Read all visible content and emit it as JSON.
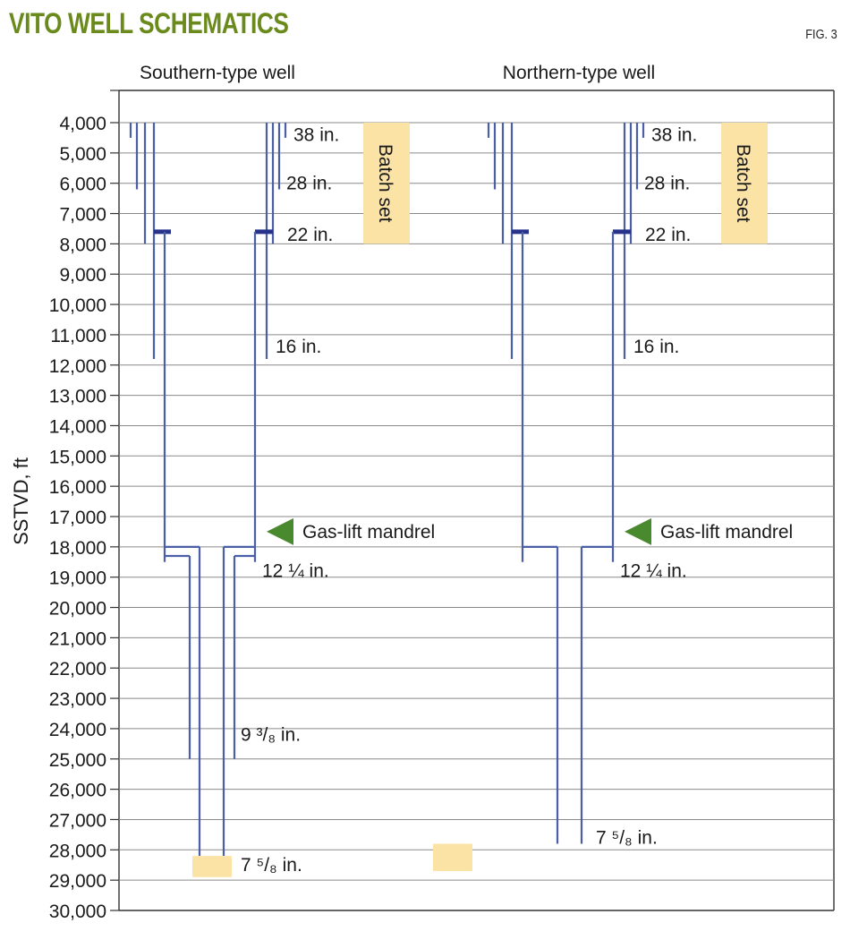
{
  "title": "VITO WELL SCHEMATICS",
  "figure_label": "FIG. 3",
  "colors": {
    "title": "#6a8a1c",
    "casing": "#4a5fa8",
    "hanger": "#27338a",
    "arrow": "#4a8a2e",
    "batch_fill": "#fbe3a6",
    "grid": "#8a8a8a"
  },
  "chart_data": {
    "type": "diagram",
    "ylabel": "SSTVD, ft",
    "ylim": [
      4000,
      30000
    ],
    "yticks": [
      {
        "value": 4000,
        "label": "4,000"
      },
      {
        "value": 5000,
        "label": "5,000"
      },
      {
        "value": 6000,
        "label": "6,000"
      },
      {
        "value": 7000,
        "label": "7,000"
      },
      {
        "value": 8000,
        "label": "8,000"
      },
      {
        "value": 9000,
        "label": "9,000"
      },
      {
        "value": 10000,
        "label": "10,000"
      },
      {
        "value": 11000,
        "label": "11,000"
      },
      {
        "value": 12000,
        "label": "12,000"
      },
      {
        "value": 13000,
        "label": "13,000"
      },
      {
        "value": 14000,
        "label": "14,000"
      },
      {
        "value": 15000,
        "label": "15,000"
      },
      {
        "value": 16000,
        "label": "16,000"
      },
      {
        "value": 17000,
        "label": "17,000"
      },
      {
        "value": 18000,
        "label": "18,000"
      },
      {
        "value": 19000,
        "label": "19,000"
      },
      {
        "value": 20000,
        "label": "20,000"
      },
      {
        "value": 21000,
        "label": "21,000"
      },
      {
        "value": 22000,
        "label": "22,000"
      },
      {
        "value": 23000,
        "label": "23,000"
      },
      {
        "value": 24000,
        "label": "24,000"
      },
      {
        "value": 25000,
        "label": "25,000"
      },
      {
        "value": 26000,
        "label": "26,000"
      },
      {
        "value": 27000,
        "label": "27,000"
      },
      {
        "value": 28000,
        "label": "28,000"
      },
      {
        "value": 29000,
        "label": "29,000"
      },
      {
        "value": 30000,
        "label": "30,000"
      }
    ],
    "wells": [
      {
        "name": "Southern-type well",
        "batch_set_label": "Batch set",
        "gas_lift_label": "Gas-lift mandrel",
        "gas_lift_depth": 17500,
        "casings": [
          {
            "label": "38 in.",
            "shoe_depth": 4500
          },
          {
            "label": "28 in.",
            "shoe_depth": 6200
          },
          {
            "label": "22 in.",
            "shoe_depth": 8000
          },
          {
            "label": "16 in.",
            "shoe_depth": 11800
          },
          {
            "label": "12 ¼ in.",
            "shoe_depth": 18500
          },
          {
            "label": "9 ³/₈ in.",
            "shoe_depth": 25000
          },
          {
            "label": "7 ⁵/₈ in.",
            "shoe_depth": 28200
          }
        ]
      },
      {
        "name": "Northern-type well",
        "batch_set_label": "Batch set",
        "gas_lift_label": "Gas-lift mandrel",
        "gas_lift_depth": 17500,
        "casings": [
          {
            "label": "38 in.",
            "shoe_depth": 4500
          },
          {
            "label": "28 in.",
            "shoe_depth": 6200
          },
          {
            "label": "22 in.",
            "shoe_depth": 8000
          },
          {
            "label": "16 in.",
            "shoe_depth": 11800
          },
          {
            "label": "12 ¼ in.",
            "shoe_depth": 18500
          },
          {
            "label": "7 ⁵/₈ in.",
            "shoe_depth": 27800
          }
        ]
      }
    ]
  }
}
